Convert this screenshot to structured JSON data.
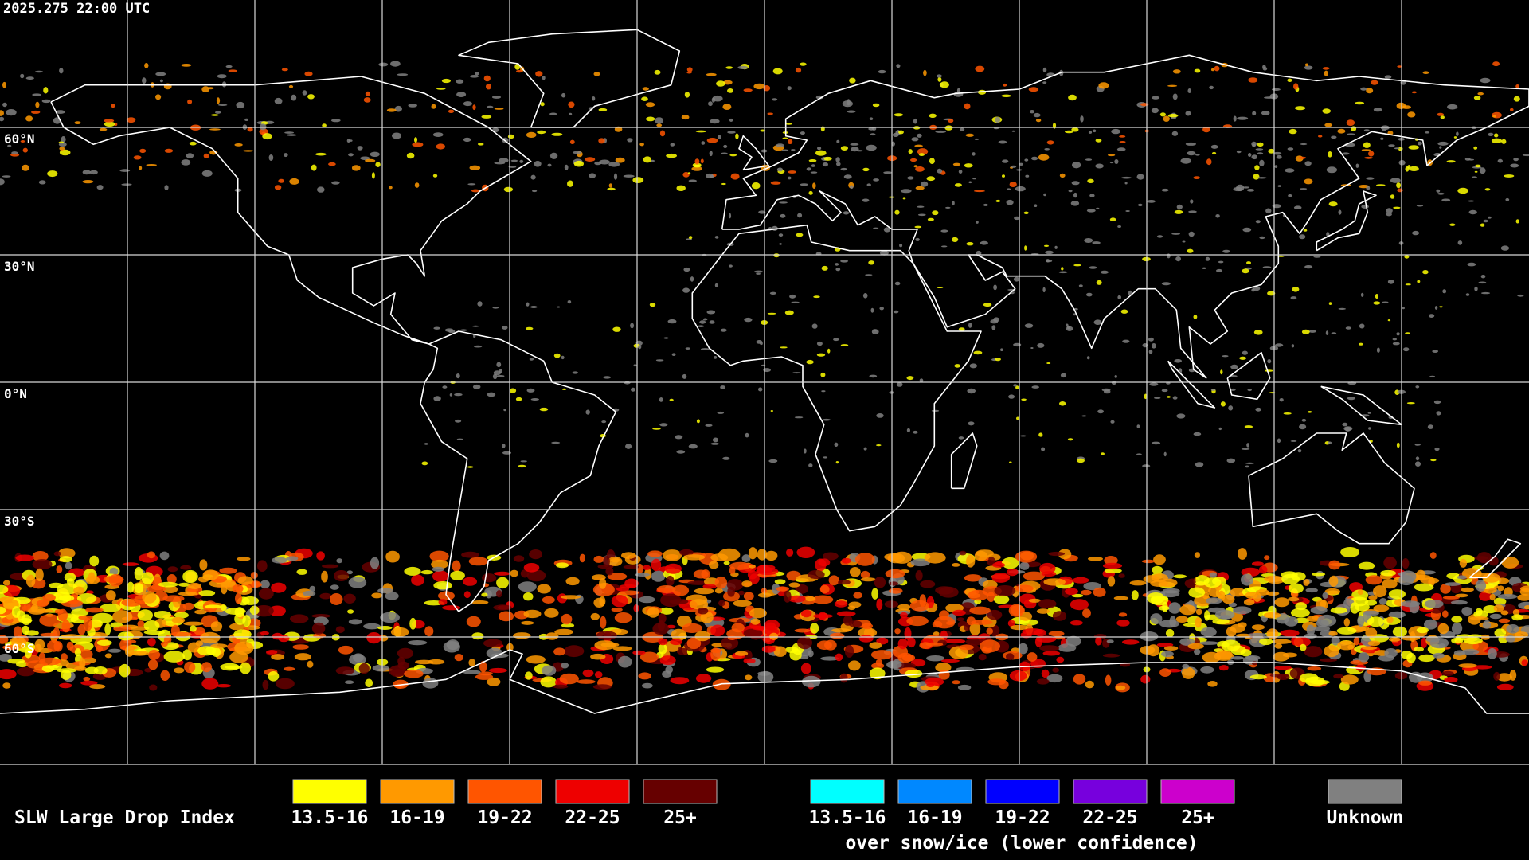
{
  "map": {
    "timestamp": "2025.275 22:00 UTC",
    "lat_labels": [
      "60°N",
      "30°N",
      "0°N",
      "30°S",
      "60°S"
    ],
    "legend": {
      "title": "SLW Large Drop Index",
      "main": [
        {
          "label": "13.5-16",
          "color": "#ffff00"
        },
        {
          "label": "16-19",
          "color": "#ff9900"
        },
        {
          "label": "19-22",
          "color": "#ff5500"
        },
        {
          "label": "22-25",
          "color": "#ee0000"
        },
        {
          "label": "25+",
          "color": "#660000"
        }
      ],
      "snow_ice": [
        {
          "label": "13.5-16",
          "color": "#00ffff"
        },
        {
          "label": "16-19",
          "color": "#0088ff"
        },
        {
          "label": "19-22",
          "color": "#0000ff"
        },
        {
          "label": "22-25",
          "color": "#7700dd"
        },
        {
          "label": "25+",
          "color": "#cc00cc"
        }
      ],
      "snow_ice_caption": "over snow/ice (lower confidence)",
      "unknown": {
        "label": "Unknown",
        "color": "#808080"
      }
    }
  }
}
